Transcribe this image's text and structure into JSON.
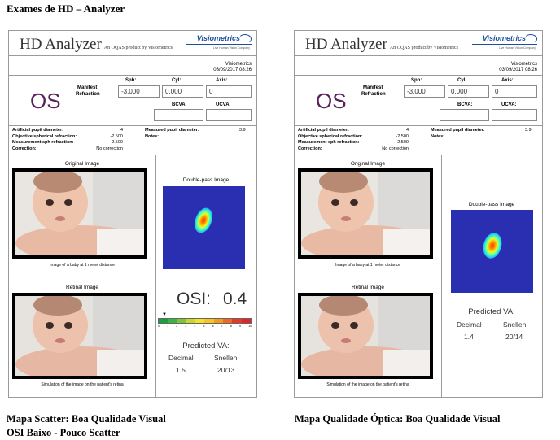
{
  "page": {
    "title": "Exames de HD – Analyzer",
    "left_caption_line1": "Mapa Scatter: Boa Qualidade Visual",
    "left_caption_line2": "OSI Baixo - Pouco Scatter",
    "right_caption": "Mapa Qualidade Óptica: Boa Qualidade Visual"
  },
  "reports": [
    {
      "title": "HD Analyzer",
      "subtitle": "An OQAS product by Visiometrics",
      "logo_text": "Visiometrics",
      "logo_tagline": "Live Human Vision Company",
      "operator": "Visiometrics",
      "datetime": "03/09/2017 08:26",
      "eye": "OS",
      "manifest_label_1": "Manifest",
      "manifest_label_2": "Refraction",
      "sph_label": "Sph:",
      "cyl_label": "Cyl:",
      "axis_label": "Axis:",
      "sph_value": "-3.000",
      "cyl_value": "0.000",
      "axis_value": "0",
      "bcva_label": "BCVA:",
      "ucva_label": "UCVA:",
      "params": [
        {
          "label": "Artificial pupil diameter:",
          "value": "4"
        },
        {
          "label": "Objective spherical refraction:",
          "value": "-2.500"
        },
        {
          "label": "Measurement sph refraction:",
          "value": "-2.500"
        },
        {
          "label": "Correction:",
          "value": "No correction"
        }
      ],
      "measured_pupil_label": "Measured pupil diameter:",
      "measured_pupil_value": "3.9",
      "notes_label": "Notes:",
      "original_image_title": "Original Image",
      "original_image_caption": "Image of a baby at 1 meter distance",
      "retinal_image_title": "Retinal Image",
      "retinal_image_caption": "Simulation of the image on the patient's retina",
      "double_pass_title": "Double-pass Image",
      "osi_label": "OSI:",
      "osi_value": "0.4",
      "scale_ticks": [
        "0",
        "1",
        "2",
        "3",
        "4",
        "5",
        "6",
        "7",
        "8",
        "9",
        "10"
      ],
      "predicted_va_label": "Predicted VA:",
      "decimal_label": "Decimal",
      "snellen_label": "Snellen",
      "decimal_value": "1.5",
      "snellen_value": "20/13"
    },
    {
      "title": "HD Analyzer",
      "subtitle": "An OQAS product by Visiometrics",
      "logo_text": "Visiometrics",
      "logo_tagline": "Live Human Vision Company",
      "operator": "Visiometrics",
      "datetime": "03/09/2017 08:26",
      "eye": "OS",
      "manifest_label_1": "Manifest",
      "manifest_label_2": "Refraction",
      "sph_label": "Sph:",
      "cyl_label": "Cyl:",
      "axis_label": "Axis:",
      "sph_value": "-3.000",
      "cyl_value": "0.000",
      "axis_value": "0",
      "bcva_label": "BCVA:",
      "ucva_label": "UCVA:",
      "params": [
        {
          "label": "Artificial pupil diameter:",
          "value": "4"
        },
        {
          "label": "Objective spherical refraction:",
          "value": "-2.500"
        },
        {
          "label": "Measurement sph refraction:",
          "value": "-2.500"
        },
        {
          "label": "Correction:",
          "value": "No correction"
        }
      ],
      "measured_pupil_label": "Measured pupil diameter:",
      "measured_pupil_value": "3.9",
      "notes_label": "Notes:",
      "original_image_title": "Original Image",
      "original_image_caption": "Image of a baby at 1 meter distance",
      "retinal_image_title": "Retinal Image",
      "retinal_image_caption": "Simulation of the image on the patient's retina",
      "double_pass_title": "Double-pass Image",
      "predicted_va_label": "Predicted VA:",
      "decimal_label": "Decimal",
      "snellen_label": "Snellen",
      "decimal_value": "1.4",
      "snellen_value": "20/14"
    }
  ]
}
